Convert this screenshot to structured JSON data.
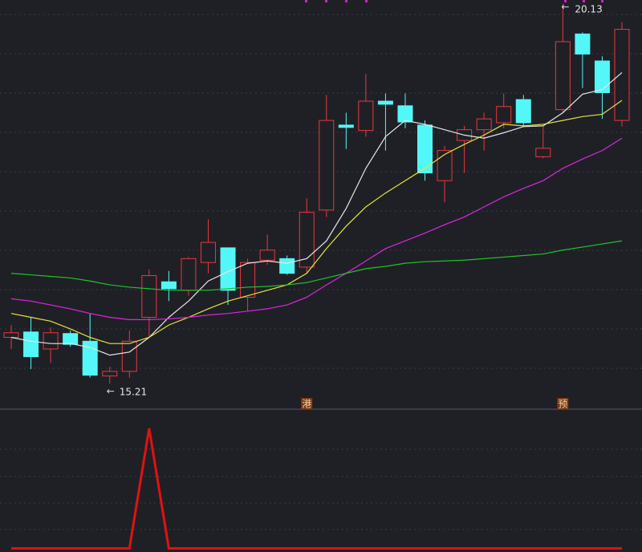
{
  "chart_data": [
    {
      "type": "candlestick",
      "open": [
        15.81,
        15.88,
        15.66,
        15.86,
        15.76,
        15.31,
        15.37,
        16.07,
        16.53,
        16.42,
        16.78,
        16.97,
        16.33,
        16.81,
        16.83,
        16.72,
        17.46,
        18.56,
        18.49,
        18.87,
        18.81,
        18.56,
        17.84,
        18.36,
        18.5,
        18.59,
        18.89,
        18.15,
        18.76,
        19.74,
        19.39,
        18.62
      ],
      "high": [
        15.97,
        16.07,
        15.94,
        15.9,
        16.12,
        15.43,
        15.9,
        16.69,
        16.67,
        16.85,
        17.34,
        16.97,
        16.83,
        17.14,
        16.87,
        17.61,
        18.95,
        18.72,
        19.22,
        18.97,
        18.97,
        18.62,
        18.29,
        18.55,
        18.72,
        18.97,
        18.95,
        18.54,
        20.13,
        19.76,
        19.45,
        19.89
      ],
      "low": [
        15.66,
        15.4,
        15.48,
        15.69,
        15.29,
        15.21,
        15.29,
        15.81,
        16.28,
        16.35,
        16.64,
        16.23,
        16.15,
        16.75,
        16.62,
        16.64,
        17.37,
        18.25,
        18.41,
        18.23,
        18.52,
        17.84,
        17.56,
        17.94,
        18.23,
        18.52,
        18.54,
        18.13,
        18.72,
        19.04,
        18.64,
        18.54
      ],
      "close": [
        15.87,
        15.56,
        15.87,
        15.72,
        15.32,
        15.37,
        15.76,
        16.61,
        16.44,
        16.83,
        17.04,
        16.42,
        16.78,
        16.94,
        16.64,
        17.43,
        18.62,
        18.53,
        18.87,
        18.83,
        18.6,
        17.94,
        18.23,
        18.5,
        18.64,
        18.8,
        18.59,
        18.26,
        19.64,
        19.48,
        18.98,
        19.8
      ],
      "up_color": "#e8393b",
      "down_color": "#54f7f7",
      "lines": [
        {
          "color": "#e6e6e6",
          "values": [
            15.81,
            15.76,
            15.73,
            15.73,
            15.68,
            15.58,
            15.62,
            15.81,
            16.07,
            16.28,
            16.54,
            16.66,
            16.77,
            16.8,
            16.77,
            16.83,
            17.06,
            17.48,
            18.0,
            18.41,
            18.62,
            18.57,
            18.5,
            18.43,
            18.39,
            18.46,
            18.54,
            18.55,
            18.72,
            18.96,
            19.02,
            19.24
          ]
        },
        {
          "color": "#e8e23c",
          "values": [
            16.12,
            16.07,
            16.02,
            15.92,
            15.81,
            15.73,
            15.73,
            15.81,
            15.97,
            16.07,
            16.18,
            16.28,
            16.35,
            16.42,
            16.49,
            16.64,
            16.96,
            17.25,
            17.5,
            17.68,
            17.84,
            18.0,
            18.18,
            18.31,
            18.43,
            18.57,
            18.55,
            18.57,
            18.62,
            18.67,
            18.7,
            18.88
          ]
        },
        {
          "color": "#e024e0",
          "values": [
            16.31,
            16.28,
            16.23,
            16.18,
            16.12,
            16.07,
            16.04,
            16.04,
            16.05,
            16.07,
            16.1,
            16.12,
            16.15,
            16.18,
            16.23,
            16.33,
            16.49,
            16.64,
            16.8,
            16.96,
            17.06,
            17.16,
            17.27,
            17.37,
            17.5,
            17.63,
            17.74,
            17.84,
            18.0,
            18.12,
            18.23,
            18.39
          ]
        },
        {
          "color": "#22c22a",
          "values": [
            16.64,
            16.62,
            16.6,
            16.58,
            16.54,
            16.49,
            16.46,
            16.44,
            16.42,
            16.42,
            16.42,
            16.44,
            16.46,
            16.47,
            16.49,
            16.52,
            16.58,
            16.64,
            16.7,
            16.73,
            16.77,
            16.79,
            16.8,
            16.81,
            16.83,
            16.85,
            16.87,
            16.89,
            16.94,
            16.98,
            17.02,
            17.06
          ]
        }
      ],
      "ylim": [
        14.88,
        20.18
      ],
      "annotations": [
        "20.13",
        "15.21"
      ],
      "markers": [
        "港",
        "预"
      ]
    },
    {
      "type": "line",
      "color": "#e01212",
      "values": [
        0,
        0,
        0,
        0,
        0,
        0,
        0,
        1,
        0,
        0,
        0,
        0,
        0,
        0,
        0,
        0,
        0,
        0,
        0,
        0,
        0,
        0,
        0,
        0,
        0,
        0,
        0,
        0,
        0,
        0,
        0,
        0
      ],
      "ylim": [
        -0.03,
        1.16
      ]
    }
  ]
}
